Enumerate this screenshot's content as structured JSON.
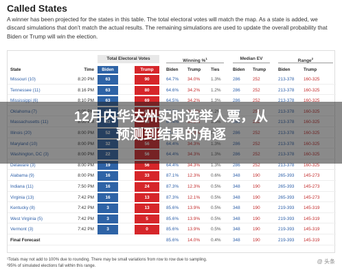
{
  "header": {
    "title": "Called States",
    "intro": "A winner has been projected for the states in this table. The total electoral votes will match the map. As a state is added, we discard simulations that don’t match the actual results. The remaining simulations are used to update the overall probability that Biden or Trump will win the election."
  },
  "table": {
    "groups": {
      "total_ev": "Total Electoral Votes",
      "winning": "Winning %",
      "winning_sup": "1",
      "median": "Median EV",
      "range": "Range",
      "range_sup": "2"
    },
    "columns": {
      "state": "State",
      "time": "Time",
      "biden": "Biden",
      "trump": "Trump",
      "win_biden": "Biden",
      "win_trump": "Trump",
      "ties": "Ties",
      "med_biden": "Biden",
      "med_trump": "Trump",
      "range_biden": "Biden",
      "range_trump": "Trump"
    },
    "rows": [
      {
        "state": "Missouri (10)",
        "time": "8:20 PM",
        "b": "63",
        "t": "90",
        "wb": "64.7%",
        "wt": "34.0%",
        "ti": "1.3%",
        "mb": "286",
        "mt": "252",
        "rb": "213-378",
        "rt": "160-325"
      },
      {
        "state": "Tennessee (11)",
        "time": "8:16 PM",
        "b": "63",
        "t": "80",
        "wb": "64.6%",
        "wt": "34.2%",
        "ti": "1.2%",
        "mb": "286",
        "mt": "252",
        "rb": "213-378",
        "rt": "160-325"
      },
      {
        "state": "Mississippi (6)",
        "time": "8:10 PM",
        "b": "63",
        "t": "69",
        "wb": "64.5%",
        "wt": "34.2%",
        "ti": "1.3%",
        "mb": "286",
        "mt": "252",
        "rb": "213-378",
        "rt": "160-325"
      },
      {
        "state": "Oklahoma (7)",
        "time": "8:05 PM",
        "b": "63",
        "t": "63",
        "wb": "64.5%",
        "wt": "34.3%",
        "ti": "1.2%",
        "mb": "286",
        "mt": "252",
        "rb": "213-378",
        "rt": "160-325"
      },
      {
        "state": "Massachusetts (11)",
        "time": "8:00 PM",
        "b": "63",
        "t": "56",
        "wb": "64.4%",
        "wt": "34.3%",
        "ti": "1.3%",
        "mb": "286",
        "mt": "252",
        "rb": "213-378",
        "rt": "160-325"
      },
      {
        "state": "Illinois (20)",
        "time": "8:00 PM",
        "b": "52",
        "t": "56",
        "wb": "64.4%",
        "wt": "34.3%",
        "ti": "1.3%",
        "mb": "286",
        "mt": "252",
        "rb": "213-378",
        "rt": "160-325"
      },
      {
        "state": "Maryland (10)",
        "time": "8:00 PM",
        "b": "32",
        "t": "56",
        "wb": "64.4%",
        "wt": "34.3%",
        "ti": "1.3%",
        "mb": "286",
        "mt": "252",
        "rb": "213-378",
        "rt": "160-325"
      },
      {
        "state": "Washington, DC (3)",
        "time": "8:00 PM",
        "b": "22",
        "t": "56",
        "wb": "64.4%",
        "wt": "34.3%",
        "ti": "1.3%",
        "mb": "286",
        "mt": "252",
        "rb": "213-378",
        "rt": "160-325"
      },
      {
        "state": "Delaware (3)",
        "time": "8:00 PM",
        "b": "19",
        "t": "56",
        "wb": "64.4%",
        "wt": "34.3%",
        "ti": "1.3%",
        "mb": "286",
        "mt": "252",
        "rb": "213-378",
        "rt": "160-325"
      },
      {
        "state": "Alabama (9)",
        "time": "8:00 PM",
        "b": "16",
        "t": "33",
        "wb": "87.1%",
        "wt": "12.3%",
        "ti": "0.6%",
        "mb": "348",
        "mt": "190",
        "rb": "265-393",
        "rt": "145-273"
      },
      {
        "state": "Indiana (11)",
        "time": "7:50 PM",
        "b": "16",
        "t": "24",
        "wb": "87.3%",
        "wt": "12.3%",
        "ti": "0.5%",
        "mb": "348",
        "mt": "190",
        "rb": "265-393",
        "rt": "145-273"
      },
      {
        "state": "Virginia (13)",
        "time": "7:42 PM",
        "b": "16",
        "t": "13",
        "wb": "87.3%",
        "wt": "12.1%",
        "ti": "0.5%",
        "mb": "348",
        "mt": "190",
        "rb": "265-393",
        "rt": "145-273"
      },
      {
        "state": "Kentucky (8)",
        "time": "7:42 PM",
        "b": "3",
        "t": "13",
        "wb": "85.6%",
        "wt": "13.9%",
        "ti": "0.5%",
        "mb": "348",
        "mt": "190",
        "rb": "219-393",
        "rt": "145-319"
      },
      {
        "state": "West Virginia (5)",
        "time": "7:42 PM",
        "b": "3",
        "t": "5",
        "wb": "85.6%",
        "wt": "13.9%",
        "ti": "0.5%",
        "mb": "348",
        "mt": "190",
        "rb": "219-393",
        "rt": "145-319"
      },
      {
        "state": "Vermont (3)",
        "time": "7:42 PM",
        "b": "3",
        "t": "0",
        "wb": "85.6%",
        "wt": "13.9%",
        "ti": "0.5%",
        "mb": "348",
        "mt": "190",
        "rb": "219-393",
        "rt": "145-319"
      },
      {
        "state": "Final Forecast",
        "time": "",
        "b": "",
        "t": "",
        "wb": "85.6%",
        "wt": "14.0%",
        "ti": "0.4%",
        "mb": "348",
        "mt": "190",
        "rb": "219-393",
        "rt": "145-319"
      }
    ]
  },
  "footnotes": {
    "line1": "¹Totals may not add to 100% due to rounding. There may be small variations from row to row due to sampling.",
    "line2": "²95% of simulated elections fall within this range."
  },
  "overlay": {
    "title_line1": "12月内华达州实时选举人票，从",
    "title_line2": "预测到结果的角逐"
  },
  "watermark": "@ 头条"
}
